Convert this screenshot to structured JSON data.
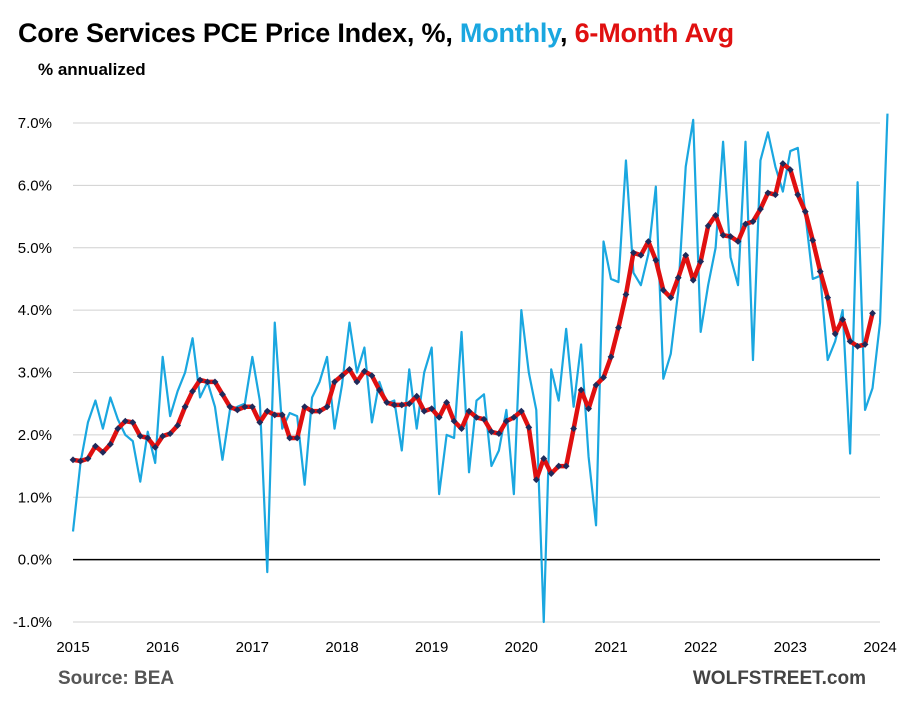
{
  "title": {
    "main": "Core Services PCE Price Index, %, ",
    "series_a": "Monthly",
    "sep": ", ",
    "series_b": "6-Month Avg"
  },
  "subtitle": "% annualized",
  "source": "Source: BEA",
  "brand": "WOLFSTREET.com",
  "colors": {
    "monthly": "#1aa7e0",
    "avg": "#e01010",
    "marker": "#1f2a5a",
    "grid": "#d0d0d0",
    "zero": "#000000"
  },
  "chart_data": {
    "type": "line",
    "title": "Core Services PCE Price Index, %, Monthly, 6-Month Avg",
    "subtitle": "% annualized",
    "ylim": [
      -1.0,
      7.0
    ],
    "yticks": [
      "-1.0%",
      "0.0%",
      "1.0%",
      "2.0%",
      "3.0%",
      "4.0%",
      "5.0%",
      "6.0%",
      "7.0%"
    ],
    "ytick_values": [
      -1,
      0,
      1,
      2,
      3,
      4,
      5,
      6,
      7
    ],
    "xlim": [
      2015,
      2024
    ],
    "xticks": [
      "2015",
      "2016",
      "2017",
      "2018",
      "2019",
      "2020",
      "2021",
      "2022",
      "2023",
      "2024"
    ],
    "grid": true,
    "series": [
      {
        "name": "Monthly",
        "x_start": 2015.0,
        "step_months": 1,
        "values": [
          0.45,
          1.55,
          2.2,
          2.55,
          2.1,
          2.6,
          2.25,
          2.0,
          1.9,
          1.25,
          2.05,
          1.55,
          3.25,
          2.3,
          2.7,
          3.0,
          3.55,
          2.6,
          2.85,
          2.45,
          1.6,
          2.4,
          2.45,
          2.5,
          3.25,
          2.55,
          -0.2,
          3.8,
          2.1,
          2.35,
          2.3,
          1.2,
          2.6,
          2.85,
          3.25,
          2.1,
          2.8,
          3.8,
          3.0,
          3.4,
          2.2,
          2.85,
          2.5,
          2.55,
          1.75,
          3.05,
          2.1,
          3.0,
          3.4,
          1.05,
          2.0,
          1.95,
          3.65,
          1.4,
          2.55,
          2.65,
          1.5,
          1.75,
          2.4,
          1.05,
          4.0,
          3.0,
          2.4,
          -1.0,
          3.05,
          2.55,
          3.7,
          2.45,
          3.45,
          1.65,
          0.55,
          5.1,
          4.5,
          4.45,
          6.4,
          4.6,
          4.4,
          4.9,
          5.98,
          2.9,
          3.3,
          4.3,
          6.3,
          7.05,
          3.65,
          4.4,
          5.0,
          6.7,
          4.85,
          4.4,
          6.7,
          3.2,
          6.4,
          6.85,
          6.3,
          5.9,
          6.55,
          6.6,
          5.55,
          4.5,
          4.55,
          3.2,
          3.5,
          4.0,
          1.7,
          6.05,
          2.4,
          2.75,
          3.8,
          7.15
        ]
      },
      {
        "name": "6-Month Avg",
        "x_start": 2015.0,
        "step_months": 1,
        "values": [
          1.6,
          1.58,
          1.62,
          1.82,
          1.72,
          1.85,
          2.1,
          2.22,
          2.2,
          1.98,
          1.95,
          1.8,
          1.98,
          2.02,
          2.15,
          2.45,
          2.7,
          2.88,
          2.85,
          2.85,
          2.65,
          2.45,
          2.4,
          2.45,
          2.45,
          2.2,
          2.38,
          2.32,
          2.32,
          1.95,
          1.95,
          2.45,
          2.38,
          2.38,
          2.45,
          2.85,
          2.95,
          3.05,
          2.85,
          3.02,
          2.95,
          2.72,
          2.52,
          2.48,
          2.48,
          2.5,
          2.62,
          2.38,
          2.42,
          2.28,
          2.52,
          2.22,
          2.1,
          2.38,
          2.28,
          2.25,
          2.05,
          2.02,
          2.22,
          2.28,
          2.38,
          2.12,
          1.28,
          1.62,
          1.38,
          1.5,
          1.5,
          2.1,
          2.72,
          2.42,
          2.8,
          2.92,
          3.25,
          3.72,
          4.25,
          4.92,
          4.88,
          5.1,
          4.8,
          4.32,
          4.2,
          4.52,
          4.88,
          4.48,
          4.78,
          5.35,
          5.52,
          5.2,
          5.18,
          5.1,
          5.38,
          5.42,
          5.62,
          5.88,
          5.85,
          6.35,
          6.25,
          5.85,
          5.58,
          5.12,
          4.62,
          4.2,
          3.62,
          3.85,
          3.5,
          3.42,
          3.45,
          3.95
        ]
      }
    ],
    "source": "Source: BEA"
  }
}
